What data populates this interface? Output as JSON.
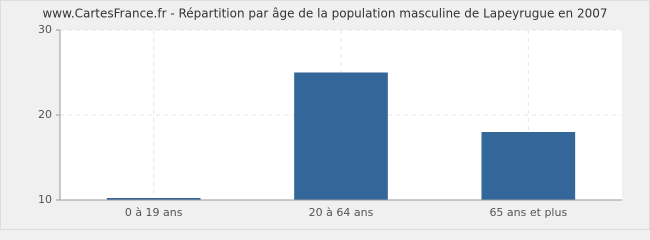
{
  "chart_data": {
    "type": "bar",
    "title": "www.CartesFrance.fr - Répartition par âge de la population masculine de Lapeyrugue en 2007",
    "categories": [
      "0 à 19 ans",
      "20 à 64 ans",
      "65 ans et plus"
    ],
    "values": [
      10,
      25,
      18
    ],
    "color": "#336699",
    "ylim": [
      10,
      30
    ],
    "yticks": [
      10,
      20,
      30
    ],
    "grid": true
  }
}
